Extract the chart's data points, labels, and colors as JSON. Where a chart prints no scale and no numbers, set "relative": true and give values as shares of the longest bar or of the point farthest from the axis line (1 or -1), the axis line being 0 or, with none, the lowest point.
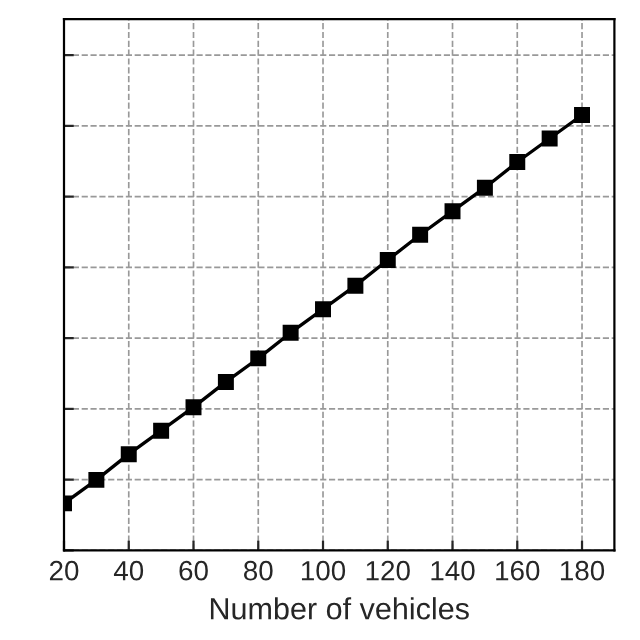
{
  "chart_data": {
    "type": "line",
    "xlabel": "Number of vehicles",
    "relative": true,
    "x": [
      20,
      30,
      40,
      50,
      60,
      70,
      80,
      90,
      100,
      110,
      120,
      130,
      140,
      150,
      160,
      170,
      180
    ],
    "series": [
      {
        "color": "#000000",
        "values": [
          0.108,
          0.162,
          0.221,
          0.275,
          0.329,
          0.387,
          0.441,
          0.5,
          0.554,
          0.608,
          0.667,
          0.725,
          0.779,
          0.833,
          0.892,
          0.946,
          1
        ]
      }
    ],
    "xlim": [
      20,
      190
    ],
    "xticks": [
      20,
      40,
      60,
      80,
      100,
      120,
      140,
      160,
      180
    ],
    "grid": true,
    "marker": "square",
    "line_style": "solid",
    "tick_labels": "x"
  }
}
